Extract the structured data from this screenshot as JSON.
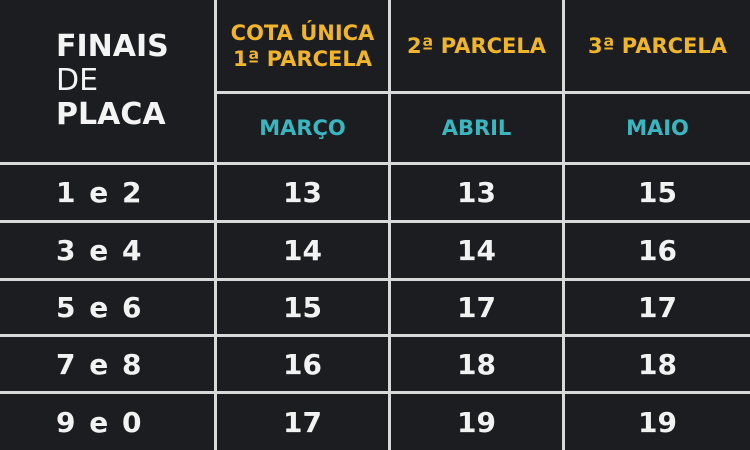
{
  "header": {
    "corner": [
      "FINAIS",
      "DE",
      "PLACA"
    ],
    "columns": [
      {
        "label": [
          "COTA ÚNICA",
          "1ª PARCELA"
        ],
        "month": "MARÇO"
      },
      {
        "label": [
          "2ª PARCELA"
        ],
        "month": "ABRIL"
      },
      {
        "label": [
          "3ª PARCELA"
        ],
        "month": "MAIO"
      }
    ]
  },
  "rows": [
    {
      "plate": "1 e 2",
      "values": [
        "13",
        "13",
        "15"
      ]
    },
    {
      "plate": "3 e 4",
      "values": [
        "14",
        "14",
        "16"
      ]
    },
    {
      "plate": "5 e 6",
      "values": [
        "15",
        "17",
        "17"
      ]
    },
    {
      "plate": "7 e 8",
      "values": [
        "16",
        "18",
        "18"
      ]
    },
    {
      "plate": "9 e 0",
      "values": [
        "17",
        "19",
        "19"
      ]
    }
  ],
  "colors": {
    "background": "#1c1d21",
    "header": "#f0b528",
    "month": "#3ab6c0",
    "text": "#f2f2f2",
    "grid": "#d9d9d9"
  }
}
